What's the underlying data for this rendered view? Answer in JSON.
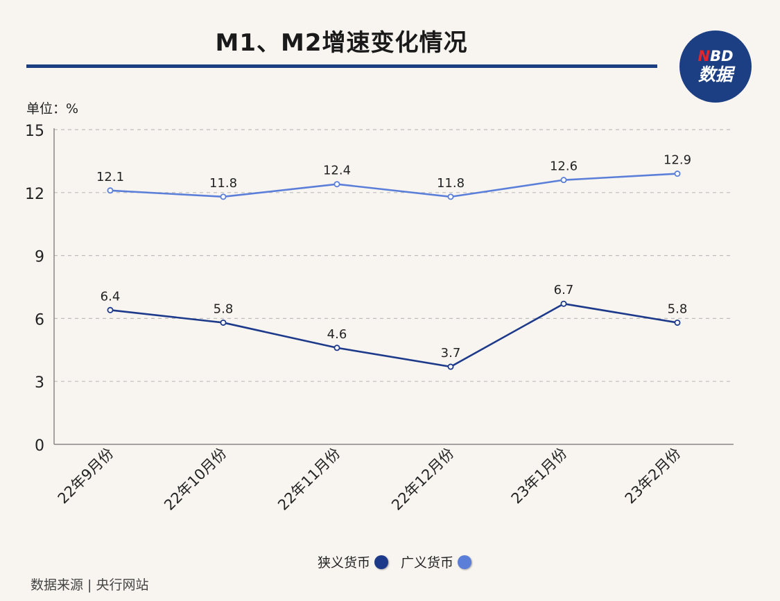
{
  "title": "M1、M2增速变化情况",
  "logo": {
    "top_n": "N",
    "top_rest": "BD",
    "bottom": "数据"
  },
  "unit_label": "单位：%",
  "source_label": "数据来源 | 央行网站",
  "colors": {
    "m1": "#1d3a8a",
    "m2": "#5b7fd8",
    "axis": "#888888",
    "grid": "#bdbdbd"
  },
  "chart_data": {
    "type": "line",
    "categories": [
      "22年9月份",
      "22年10月份",
      "22年11月份",
      "22年12月份",
      "23年1月份",
      "23年2月份"
    ],
    "series": [
      {
        "name": "狭义货币",
        "values": [
          6.4,
          5.8,
          4.6,
          3.7,
          6.7,
          5.8
        ]
      },
      {
        "name": "广义货币",
        "values": [
          12.1,
          11.8,
          12.4,
          11.8,
          12.6,
          12.9
        ]
      }
    ],
    "ylim": [
      0,
      15
    ],
    "yticks": [
      0,
      3,
      6,
      9,
      12,
      15
    ],
    "grid": true,
    "legend_position": "bottom"
  }
}
